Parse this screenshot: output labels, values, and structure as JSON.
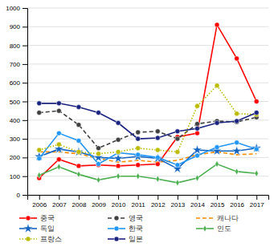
{
  "chart_data": {
    "type": "line",
    "x": [
      2006,
      2007,
      2008,
      2009,
      2010,
      2011,
      2012,
      2013,
      2014,
      2015,
      2016,
      2017
    ],
    "xlim": [
      2005.4,
      2017.6
    ],
    "xticks": [
      2006,
      2007,
      2008,
      2009,
      2010,
      2011,
      2012,
      2013,
      2014,
      2015,
      2016,
      2017
    ],
    "ylim": [
      0,
      1000
    ],
    "yticks": [
      0,
      100,
      200,
      300,
      400,
      500,
      600,
      700,
      800,
      900,
      1000
    ],
    "grid": true,
    "legend": "bottom",
    "series": [
      {
        "name": "중국",
        "color": "#FF0000",
        "marker": "circle",
        "line_style": "solid",
        "values": [
          90,
          190,
          155,
          160,
          155,
          160,
          165,
          310,
          330,
          910,
          730,
          500
        ]
      },
      {
        "name": "영국",
        "color": "#404040",
        "marker": "circle",
        "line_style": "dashed",
        "values": [
          440,
          450,
          375,
          250,
          295,
          335,
          340,
          300,
          380,
          395,
          390,
          415
        ]
      },
      {
        "name": "캐나다",
        "color": "#FF8C00",
        "marker": "none",
        "line_style": "dashed",
        "values": [
          230,
          230,
          220,
          195,
          175,
          185,
          175,
          185,
          215,
          230,
          215,
          220
        ]
      },
      {
        "name": "독일",
        "color": "#1565C0",
        "marker": "star",
        "line_style": "solid",
        "values": [
          205,
          245,
          230,
          200,
          195,
          205,
          195,
          140,
          240,
          235,
          235,
          250
        ]
      },
      {
        "name": "한국",
        "color": "#2196F3",
        "marker": "circle",
        "line_style": "solid",
        "values": [
          195,
          330,
          290,
          165,
          225,
          215,
          200,
          160,
          210,
          255,
          280,
          245
        ]
      },
      {
        "name": "인도",
        "color": "#4CAF50",
        "marker": "diamond",
        "line_style": "solid",
        "values": [
          105,
          150,
          110,
          80,
          100,
          100,
          85,
          65,
          90,
          165,
          125,
          115
        ]
      },
      {
        "name": "프랑스",
        "color": "#BBBB00",
        "marker": "circle",
        "line_style": "dotted",
        "values": [
          240,
          270,
          230,
          220,
          230,
          250,
          240,
          230,
          475,
          585,
          435,
          430
        ]
      },
      {
        "name": "일본",
        "color": "#1A237E",
        "marker": "circle",
        "line_style": "solid",
        "values": [
          490,
          490,
          470,
          440,
          385,
          300,
          305,
          340,
          355,
          385,
          395,
          440
        ]
      }
    ]
  }
}
